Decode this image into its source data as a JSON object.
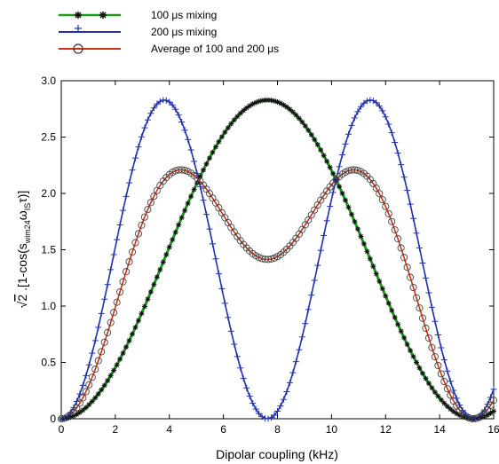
{
  "chart_data": {
    "type": "line",
    "title": "",
    "xlabel": "Dipolar coupling (kHz)",
    "ylabel": "√2 .[1-cos(s_wim24 ω_IS τ)]",
    "ylabel_parts": {
      "sqrt": "√",
      "two": "2",
      "open": " .[1-cos(s",
      "sub1": "wim24",
      "omega": "ω",
      "sub2": "IS",
      "tau": "τ)]"
    },
    "xlim": [
      0,
      16
    ],
    "ylim": [
      0,
      3.0
    ],
    "xticks": [
      "0",
      "2",
      "4",
      "6",
      "8",
      "10",
      "12",
      "14",
      "16"
    ],
    "yticks": [
      "0",
      "0.5",
      "1.0",
      "1.5",
      "2.0",
      "2.5",
      "3.0"
    ],
    "grid": false,
    "legend_position": "above plot, top-left",
    "series": [
      {
        "name": "100 μs mixing",
        "color": "#1a9e1a",
        "marker": "asterisk",
        "formula": "sqrt(2)*(1-cos(2*pi*x/15.25))",
        "x_range": [
          0,
          16
        ]
      },
      {
        "name": "200 μs mixing",
        "color": "#2030b0",
        "marker": "plus",
        "formula": "sqrt(2)*(1-cos(4*pi*x/15.25))",
        "x_range": [
          0,
          16
        ]
      },
      {
        "name": "Average of 100 and 200 μs",
        "color": "#d03010",
        "marker": "circle",
        "formula": "mean of the two series above",
        "x_range": [
          0,
          16
        ]
      }
    ]
  }
}
